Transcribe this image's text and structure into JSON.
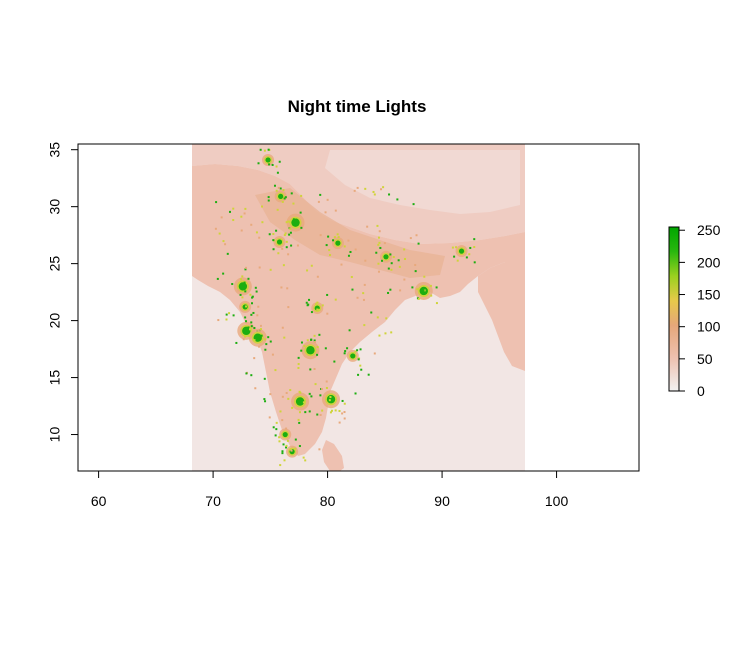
{
  "chart_data": {
    "type": "heatmap",
    "title": "Night time Lights",
    "xlabel": "",
    "ylabel": "",
    "xlim": [
      58.2,
      107.2
    ],
    "ylim": [
      6.8,
      35.5
    ],
    "x_ticks": [
      60,
      70,
      80,
      90,
      100
    ],
    "y_ticks": [
      10,
      15,
      20,
      25,
      30,
      35
    ],
    "raster_extent": {
      "xmin": 68.2,
      "xmax": 97.4,
      "ymin": 6.8,
      "ymax": 35.5
    },
    "legend": {
      "placement": "right",
      "ticks": [
        0,
        50,
        100,
        150,
        200,
        250
      ],
      "range": [
        0,
        255
      ],
      "colors": [
        "#f2f2f2",
        "#eec1b0",
        "#e6a77a",
        "#e7c94a",
        "#9bd11f",
        "#29b80f",
        "#00a600"
      ]
    },
    "colors": {
      "land": "#eec1b1",
      "sea": "#f2e6e4",
      "himalaya": "#efccc2",
      "plateau": "#f0d9d3",
      "light_low": "#e8a97c",
      "light_mid": "#cfd43a",
      "light_high": "#1cae10"
    },
    "bright_spots": [
      {
        "lon": 77.2,
        "lat": 28.6,
        "value": 255
      },
      {
        "lon": 72.9,
        "lat": 19.1,
        "value": 255
      },
      {
        "lon": 88.4,
        "lat": 22.6,
        "value": 255
      },
      {
        "lon": 77.6,
        "lat": 12.9,
        "value": 255
      },
      {
        "lon": 78.5,
        "lat": 17.4,
        "value": 255
      },
      {
        "lon": 80.3,
        "lat": 13.1,
        "value": 250
      },
      {
        "lon": 72.6,
        "lat": 23.0,
        "value": 240
      },
      {
        "lon": 75.8,
        "lat": 26.9,
        "value": 220
      },
      {
        "lon": 80.9,
        "lat": 26.8,
        "value": 220
      },
      {
        "lon": 73.9,
        "lat": 18.5,
        "value": 230
      },
      {
        "lon": 75.9,
        "lat": 30.9,
        "value": 210
      },
      {
        "lon": 85.1,
        "lat": 25.6,
        "value": 200
      },
      {
        "lon": 79.1,
        "lat": 21.1,
        "value": 190
      },
      {
        "lon": 72.8,
        "lat": 21.2,
        "value": 200
      },
      {
        "lon": 76.9,
        "lat": 8.5,
        "value": 180
      },
      {
        "lon": 76.3,
        "lat": 10.0,
        "value": 180
      },
      {
        "lon": 91.7,
        "lat": 26.1,
        "value": 170
      },
      {
        "lon": 82.2,
        "lat": 16.9,
        "value": 160
      },
      {
        "lon": 74.8,
        "lat": 34.1,
        "value": 150
      }
    ]
  }
}
